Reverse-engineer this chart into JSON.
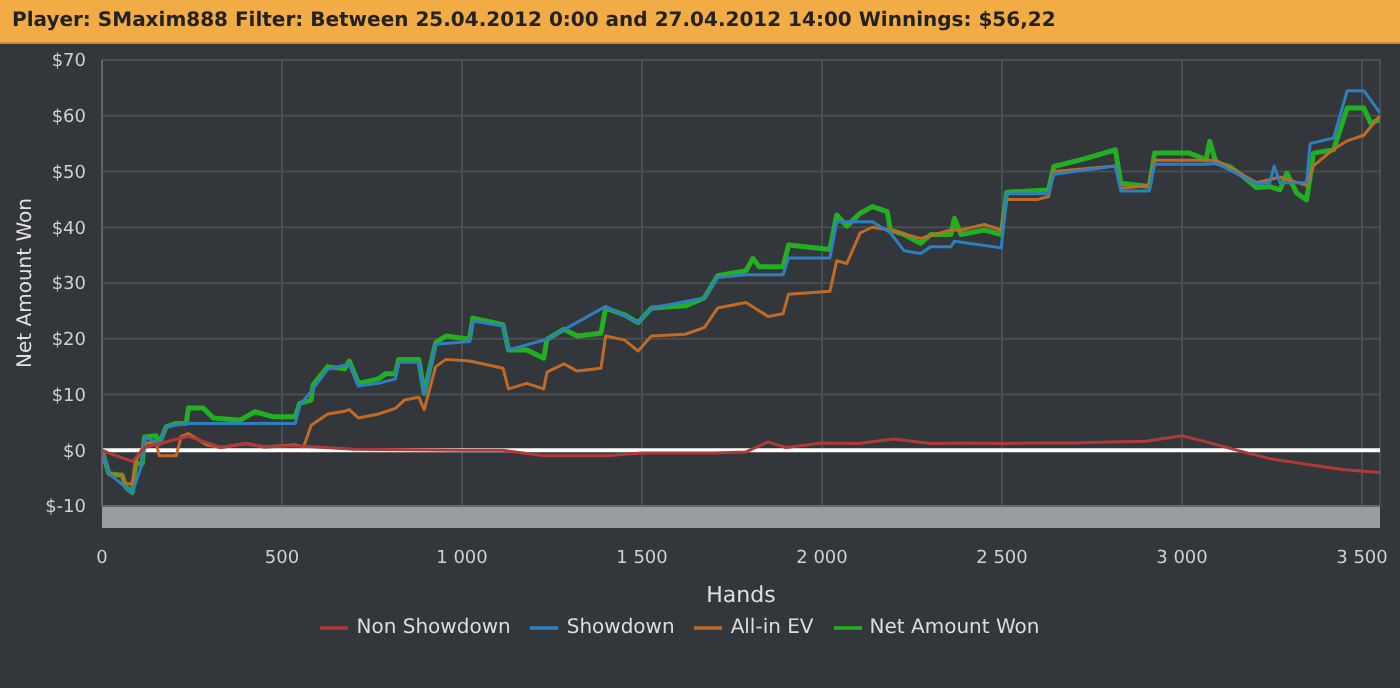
{
  "chart_data": {
    "type": "line",
    "title": "Player: SMaxim888 Filter: Between 25.04.2012 0:00 and 27.04.2012 14:00 Winnings: $56,22",
    "xlabel": "Hands",
    "ylabel": "Net Amount Won",
    "xlim": [
      0,
      3550
    ],
    "xticks": [
      0,
      500,
      {
        "value": 1000,
        "label": "1 000"
      },
      {
        "value": 1500,
        "label": "1 500"
      },
      {
        "value": 2000,
        "label": "2 000"
      },
      {
        "value": 2500,
        "label": "2 500"
      },
      {
        "value": 3000,
        "label": "3 000"
      },
      {
        "value": 3500,
        "label": "3 500"
      }
    ],
    "ylim": [
      -10,
      70
    ],
    "yticks": [
      {
        "value": -10,
        "label": "$-10"
      },
      {
        "value": 0,
        "label": "$0"
      },
      {
        "value": 10,
        "label": "$10"
      },
      {
        "value": 20,
        "label": "$20"
      },
      {
        "value": 30,
        "label": "$30"
      },
      {
        "value": 40,
        "label": "$40"
      },
      {
        "value": 50,
        "label": "$50"
      },
      {
        "value": 60,
        "label": "$60"
      },
      {
        "value": 70,
        "label": "$70"
      }
    ],
    "grid": true,
    "legend": "bottom",
    "marker": "none",
    "line_style": "solid",
    "ref_lines": [
      {
        "axis": "y",
        "value": 0,
        "color": "#ffffff"
      }
    ],
    "series": [
      {
        "name": "Non Showdown",
        "color": "#b03a3a",
        "x": [
          0,
          19,
          84,
          118,
          240,
          330,
          400,
          450,
          537,
          700,
          1000,
          1114,
          1227,
          1400,
          1500,
          1700,
          1789,
          1850,
          1900,
          2000,
          2100,
          2200,
          2300,
          2400,
          2498,
          2600,
          2700,
          2800,
          2900,
          3000,
          3067,
          3170,
          3244,
          3346,
          3450,
          3550
        ],
        "values": [
          0,
          -0.5,
          -2,
          0.5,
          2.5,
          0.5,
          1.2,
          0.6,
          0.8,
          0.2,
          0,
          0,
          -1,
          -1,
          -0.5,
          -0.5,
          -0.3,
          1.5,
          0.5,
          1.3,
          1.2,
          2,
          1.2,
          1.3,
          1.2,
          1.3,
          1.3,
          1.5,
          1.6,
          2.6,
          1.5,
          -0.3,
          -1.5,
          -2.5,
          -3.5,
          -4
        ]
      },
      {
        "name": "Showdown",
        "color": "#2e7fbf",
        "x": [
          0,
          19,
          84,
          112,
          118,
          159,
          178,
          234,
          537,
          549,
          586,
          627,
          687,
          712,
          768,
          815,
          824,
          880,
          895,
          927,
          1021,
          1030,
          1114,
          1129,
          1236,
          1399,
          1489,
          1526,
          1673,
          1710,
          1789,
          1892,
          1907,
          2022,
          2041,
          2106,
          2140,
          2190,
          2228,
          2274,
          2302,
          2358,
          2368,
          2498,
          2513,
          2629,
          2644,
          2815,
          2830,
          2909,
          2924,
          3067,
          3095,
          3207,
          3244,
          3256,
          3272,
          3346,
          3356,
          3421,
          3459,
          3505,
          3550
        ],
        "values": [
          0,
          -4.2,
          -7.6,
          -2.4,
          2.4,
          1.2,
          4.2,
          4.8,
          4.8,
          8,
          11,
          14.5,
          15.5,
          11.5,
          12,
          12.8,
          15.8,
          15.8,
          10,
          19,
          19.5,
          23.2,
          22.3,
          18,
          19.9,
          25.8,
          22.9,
          25.5,
          27.3,
          31,
          31.5,
          31.5,
          34.5,
          34.5,
          41,
          41,
          41,
          39,
          35.8,
          35.3,
          36.5,
          36.5,
          37.5,
          36.3,
          46,
          46,
          49.5,
          51,
          46.5,
          46.5,
          51.3,
          51.3,
          51.5,
          47.8,
          48,
          51,
          48,
          48,
          55,
          56,
          64.5,
          64.5,
          60.5
        ]
      },
      {
        "name": "All-in EV",
        "color": "#c06a28",
        "x": [
          0,
          19,
          56,
          66,
          84,
          94,
          118,
          150,
          159,
          206,
          220,
          240,
          290,
          330,
          400,
          450,
          537,
          560,
          581,
          627,
          674,
          687,
          712,
          768,
          815,
          840,
          880,
          895,
          927,
          955,
          1021,
          1114,
          1129,
          1180,
          1227,
          1236,
          1283,
          1320,
          1386,
          1399,
          1451,
          1489,
          1526,
          1620,
          1673,
          1710,
          1789,
          1850,
          1892,
          1907,
          2022,
          2041,
          2069,
          2106,
          2140,
          2190,
          2228,
          2274,
          2302,
          2358,
          2386,
          2451,
          2498,
          2513,
          2600,
          2629,
          2644,
          2815,
          2830,
          2909,
          2924,
          3067,
          3095,
          3207,
          3272,
          3346,
          3365,
          3421,
          3459,
          3505,
          3550
        ],
        "values": [
          0,
          -4.2,
          -4.5,
          -6,
          -6,
          -2,
          1.2,
          1.5,
          -1,
          -1,
          2.5,
          3,
          1,
          0.5,
          1.2,
          0.6,
          1,
          0.6,
          4.5,
          6.5,
          7,
          7.3,
          5.8,
          6.5,
          7.5,
          9,
          9.5,
          7.3,
          15,
          16.3,
          16,
          14.7,
          11,
          12,
          11,
          14,
          15.5,
          14.2,
          14.7,
          20.5,
          19.8,
          17.8,
          20.5,
          20.8,
          22,
          25.5,
          26.5,
          24,
          24.5,
          28,
          28.5,
          34,
          33.5,
          39,
          40,
          39.5,
          38.8,
          38,
          38.5,
          39.5,
          39.5,
          40.5,
          39.5,
          45,
          45,
          45.5,
          50,
          51,
          47,
          47.5,
          52,
          52,
          52,
          48,
          49,
          47.5,
          51,
          54,
          55.5,
          56.5,
          60
        ]
      },
      {
        "name": "Net Amount Won",
        "color": "#22b022",
        "x": [
          0,
          19,
          56,
          66,
          84,
          94,
          112,
          118,
          150,
          159,
          178,
          206,
          234,
          240,
          281,
          309,
          384,
          425,
          477,
          537,
          549,
          581,
          586,
          627,
          674,
          687,
          712,
          768,
          787,
          815,
          824,
          880,
          895,
          927,
          955,
          1021,
          1030,
          1114,
          1129,
          1180,
          1227,
          1236,
          1283,
          1320,
          1386,
          1399,
          1451,
          1489,
          1526,
          1620,
          1673,
          1710,
          1789,
          1808,
          1826,
          1892,
          1907,
          2022,
          2041,
          2069,
          2106,
          2140,
          2181,
          2190,
          2228,
          2274,
          2302,
          2358,
          2368,
          2386,
          2451,
          2498,
          2513,
          2629,
          2644,
          2731,
          2815,
          2830,
          2909,
          2924,
          3021,
          3067,
          3077,
          3095,
          3132,
          3170,
          3207,
          3244,
          3272,
          3291,
          3319,
          3346,
          3356,
          3365,
          3421,
          3459,
          3505,
          3524,
          3550
        ],
        "values": [
          0,
          -4.2,
          -4.5,
          -6.6,
          -7.6,
          -2.4,
          -2.4,
          2.4,
          2.6,
          1.2,
          4.2,
          4.8,
          4.8,
          7.6,
          7.6,
          5.8,
          5.4,
          6.9,
          6,
          6,
          8.4,
          9,
          11.7,
          15,
          14.6,
          16,
          12,
          12.8,
          13.7,
          13.7,
          16.3,
          16.3,
          10.2,
          19.3,
          20.5,
          19.9,
          23.7,
          22.5,
          18,
          18,
          16.5,
          19.9,
          21.7,
          20.5,
          21,
          25.5,
          24.3,
          22.9,
          25.5,
          25.9,
          27.3,
          31.3,
          32.2,
          34.4,
          32.9,
          32.9,
          36.8,
          36,
          42.2,
          40.2,
          42.5,
          43.7,
          42.8,
          39.5,
          38.7,
          37.1,
          38.7,
          38.7,
          41.6,
          38.7,
          39.5,
          38.7,
          46.3,
          46.7,
          50.9,
          52.3,
          53.9,
          47.9,
          47.3,
          53.3,
          53.3,
          52.1,
          55.4,
          51.5,
          50.9,
          49.1,
          47.1,
          47.3,
          46.7,
          49.7,
          46.1,
          44.9,
          49.1,
          53.3,
          53.9,
          61.4,
          61.4,
          58.7,
          59.3
        ]
      }
    ]
  }
}
